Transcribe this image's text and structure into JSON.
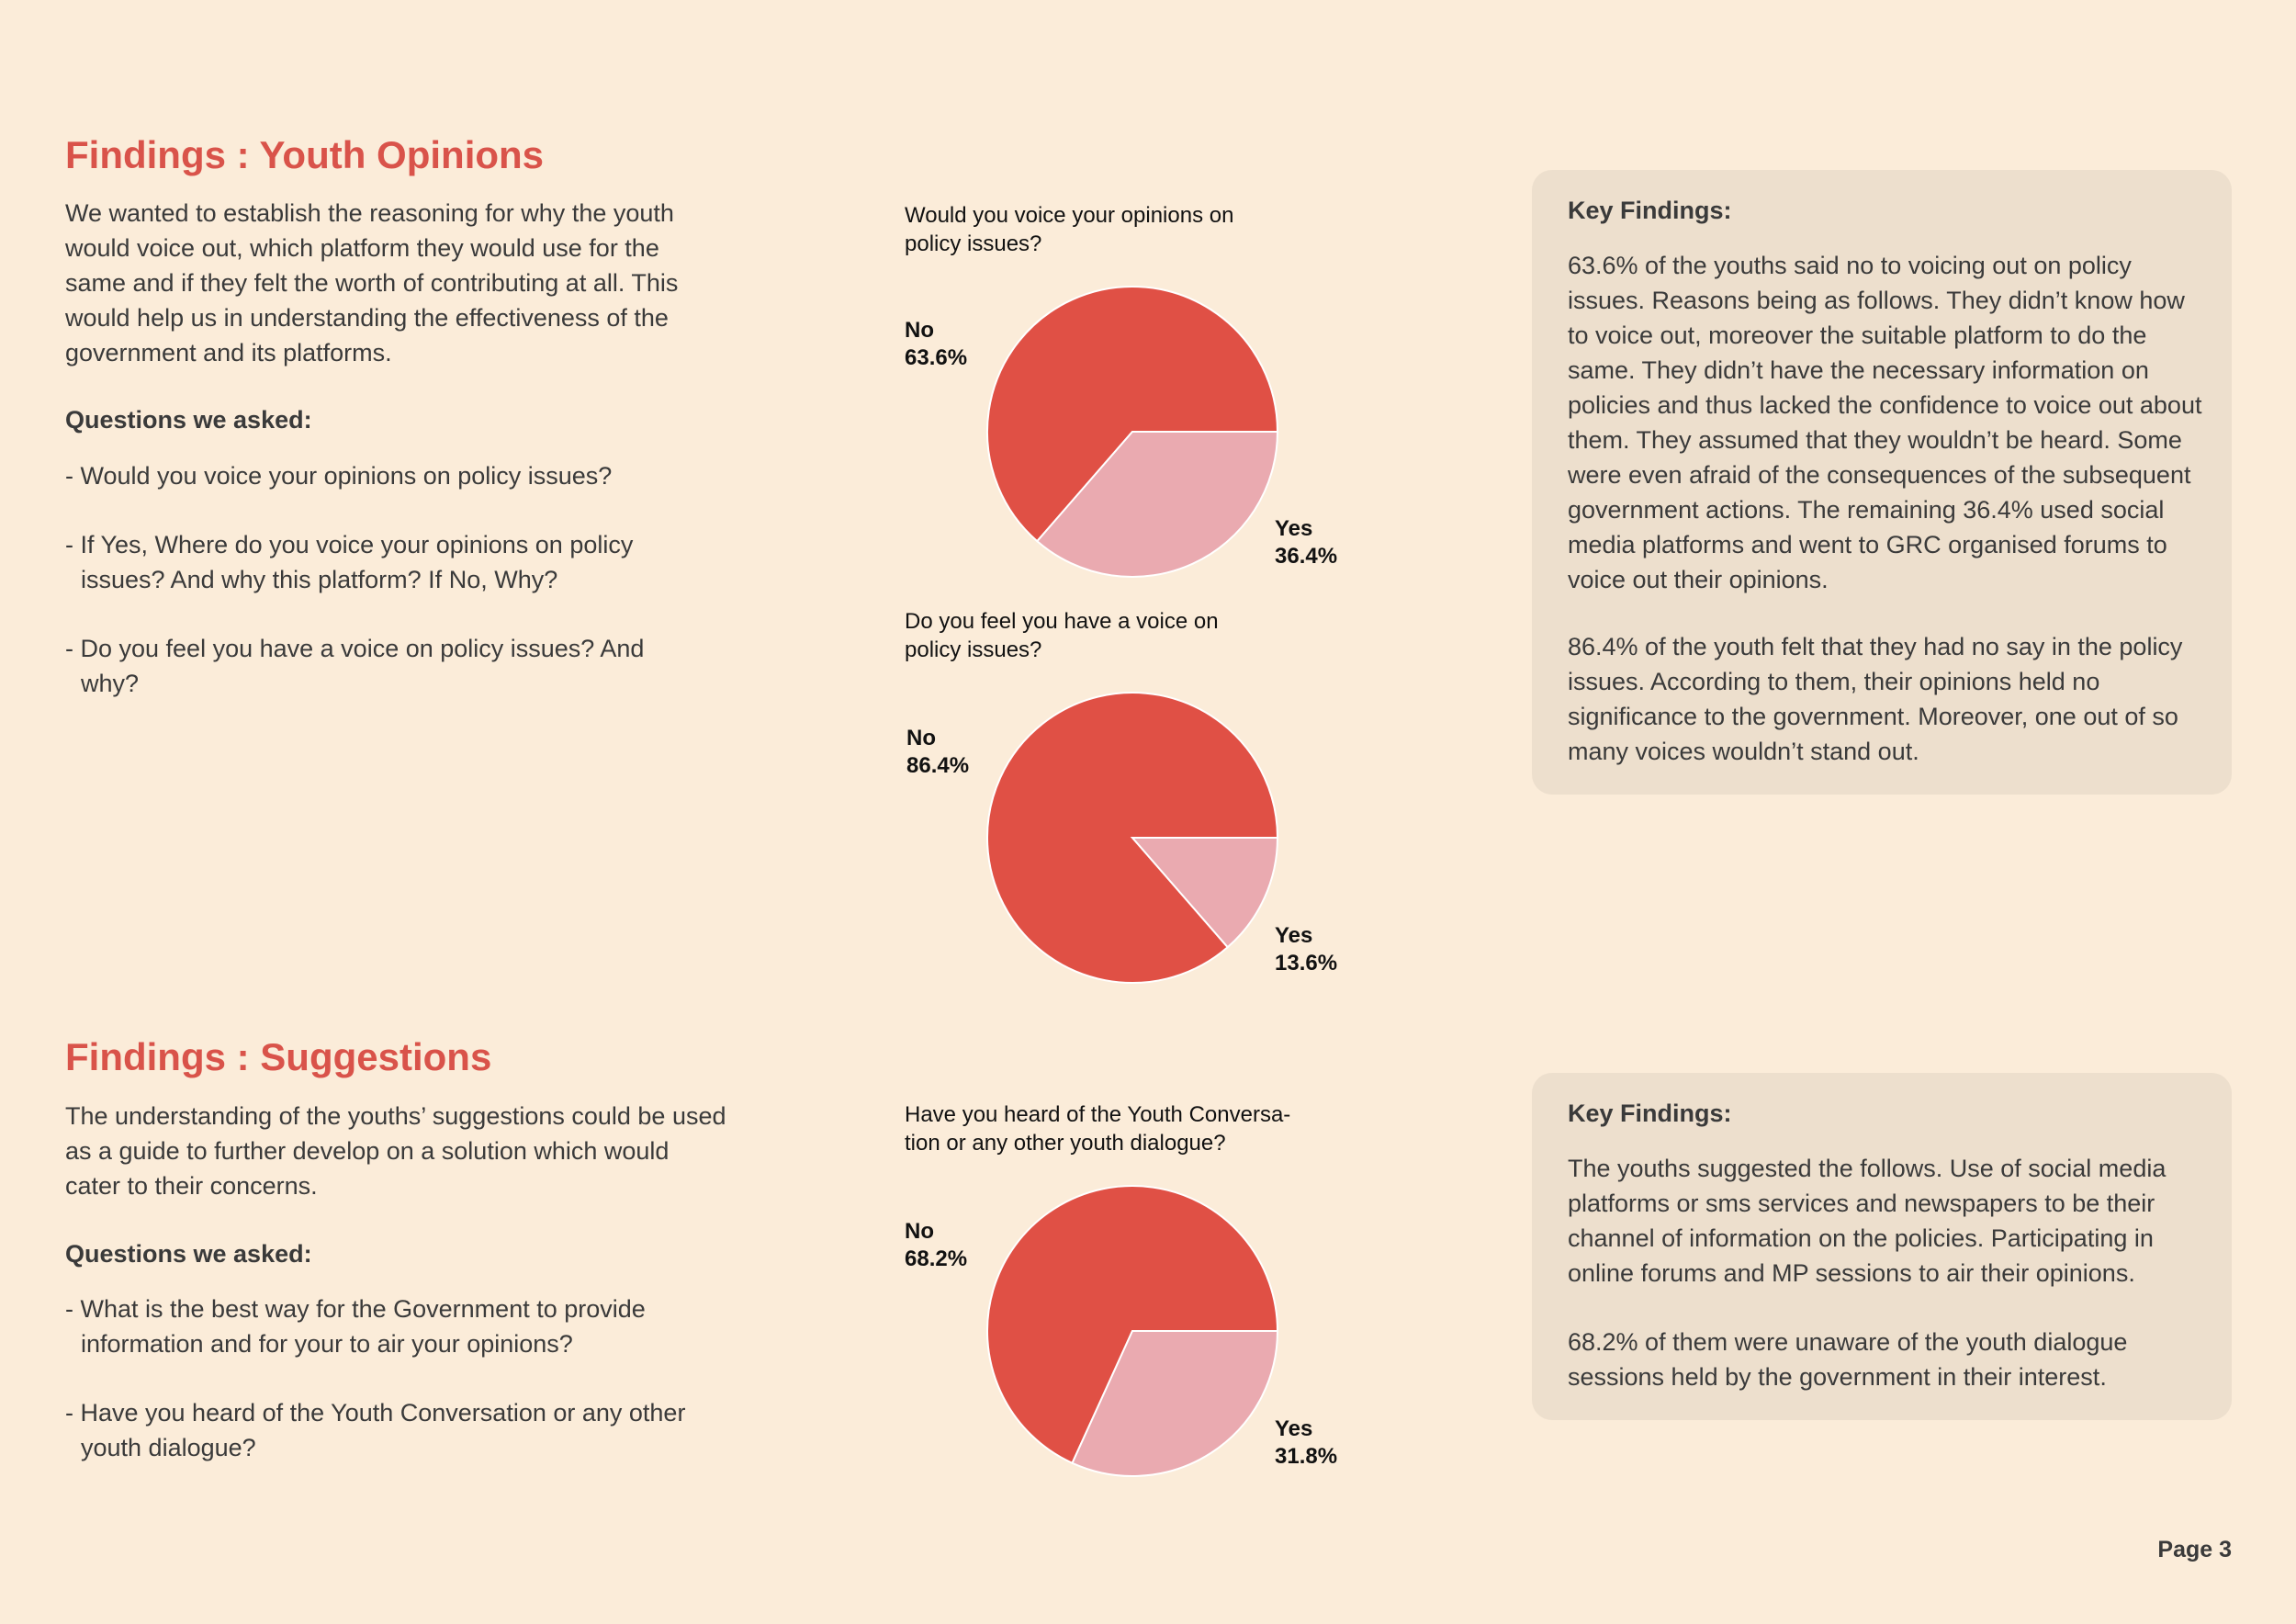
{
  "colors": {
    "no": "#e05045",
    "yes": "#eaaab0",
    "accent": "#d9534a",
    "panel": "#eddfcd",
    "background": "#fbecd9"
  },
  "opinions": {
    "title": "Findings : Youth Opinions",
    "intro": "We wanted to establish the reasoning for why the youth would voice out, which platform they would use for the same and if they felt the worth of contributing at all. This would help us in understanding the effectiveness of the government and its platforms.",
    "questions_heading": "Questions we asked:",
    "questions": [
      "- Would you voice your opinions on policy issues?",
      "-  If Yes, Where do you voice your opinions on policy issues? And why this platform? If No, Why?",
      "- Do you feel you have a voice on policy issues? And why?"
    ],
    "key_findings": {
      "heading": "Key Findings:",
      "paragraphs": [
        " 63.6% of the youths said no to voicing out on policy issues. Reasons being as follows. They didn’t know how to voice out, moreover the suitable platform to do the same. They didn’t have the necessary information on policies and thus lacked the confidence to voice out about them. They assumed that they wouldn’t be heard. Some were even afraid of the consequences of the subsequent government actions. The remaining 36.4% used social media platforms and went to GRC organised forums to voice out their opinions.",
        "86.4% of the youth felt that they had no say in the policy issues. According to them, their opinions held no significance to the government. Moreover, one out of so many voices wouldn’t stand out."
      ]
    }
  },
  "suggestions": {
    "title": "Findings : Suggestions",
    "intro": "The understanding of the youths’ suggestions could be used as a guide to further develop on a solution which would cater to their concerns.",
    "questions_heading": "Questions we asked:",
    "questions": [
      "- What is the best way for the Government to provide information and for your to air your opinions?",
      "- Have you heard of the Youth Conversation or any other youth dialogue?"
    ],
    "key_findings": {
      "heading": "Key Findings:",
      "paragraphs": [
        "The youths suggested the follows. Use of social media platforms or sms services and newspapers to be their channel of information on the policies. Participating in online forums and MP sessions to air their opinions.",
        "68.2% of them were unaware of the youth dialogue sessions held by the government in their interest."
      ]
    }
  },
  "chart_data": [
    {
      "type": "pie",
      "title": "Would you voice your opinions on policy issues?",
      "categories": [
        "No",
        "Yes"
      ],
      "values": [
        63.6,
        36.4
      ],
      "labels": [
        "63.6%",
        "36.4%"
      ]
    },
    {
      "type": "pie",
      "title": "Do you feel you have a voice on policy issues?",
      "categories": [
        "No",
        "Yes"
      ],
      "values": [
        86.4,
        13.6
      ],
      "labels": [
        "86.4%",
        "13.6%"
      ]
    },
    {
      "type": "pie",
      "title": "Have you heard of the Youth Conversa- tion or any other youth dialogue?",
      "categories": [
        "No",
        "Yes"
      ],
      "values": [
        68.2,
        31.8
      ],
      "labels": [
        "68.2%",
        "31.8%"
      ]
    }
  ],
  "page": {
    "label": "Page 3"
  }
}
